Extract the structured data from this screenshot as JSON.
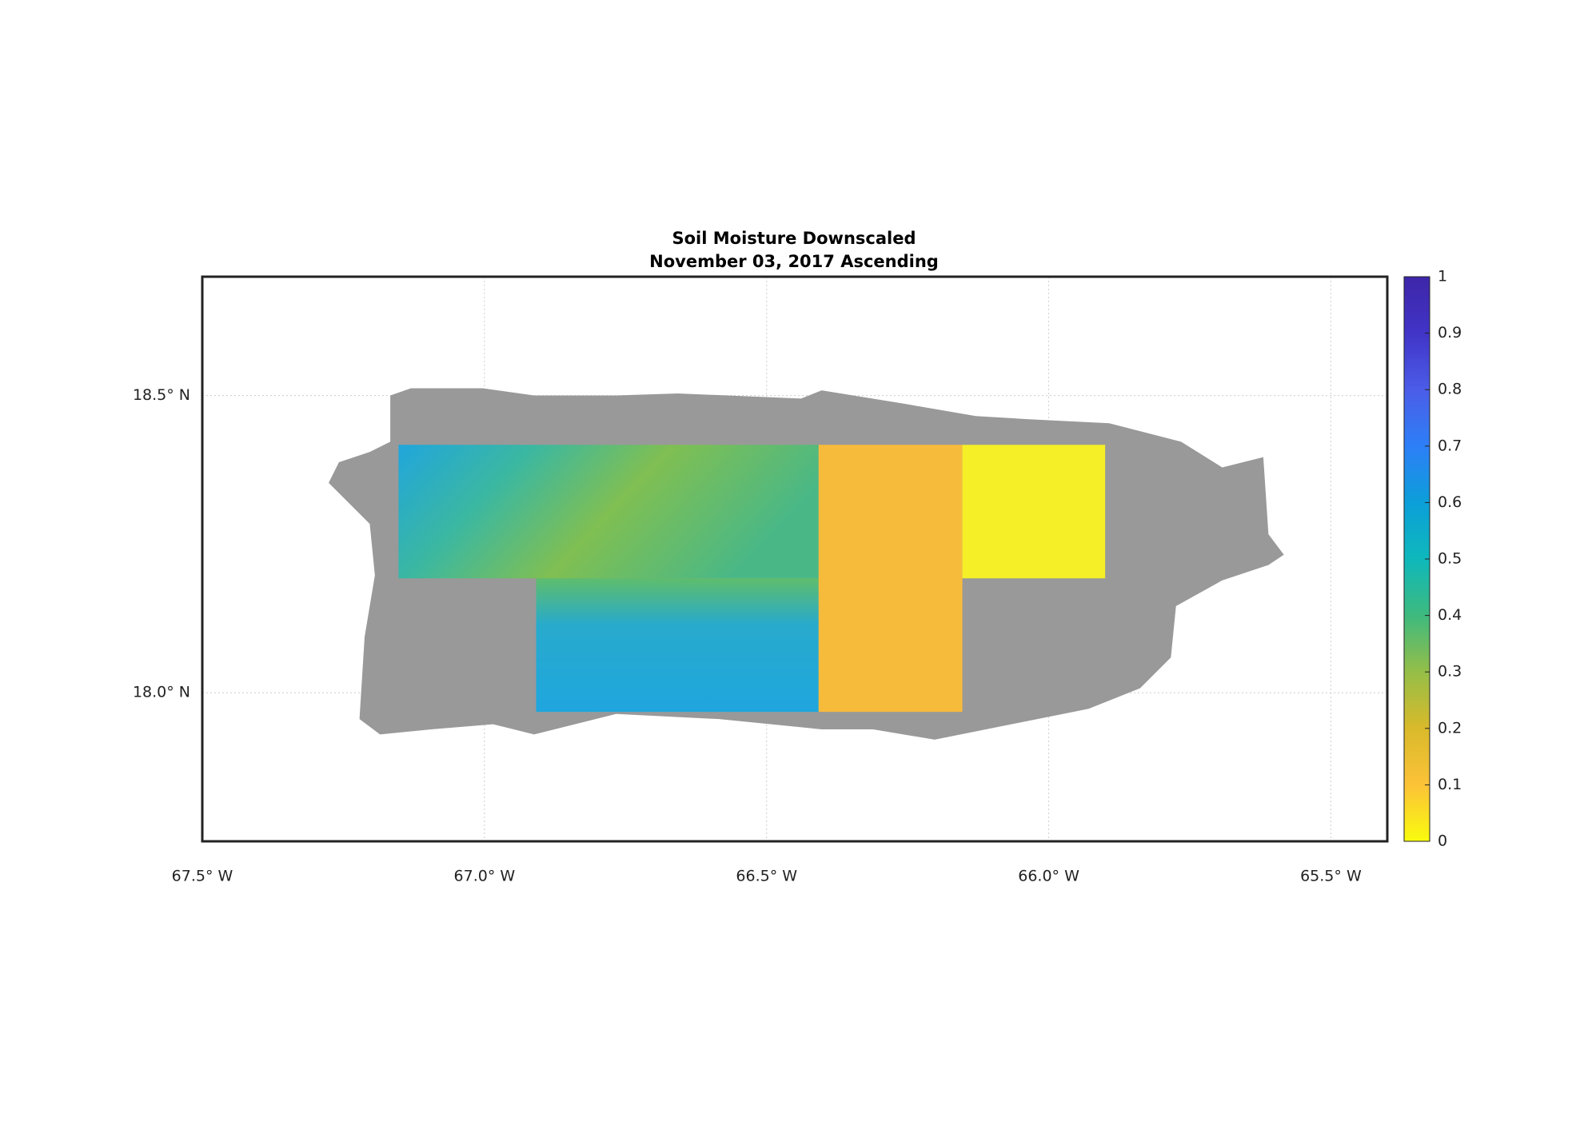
{
  "chart_data": {
    "type": "map",
    "title": "Soil Moisture Downscaled",
    "subtitle": "November 03, 2017 Ascending",
    "xlim": [
      -67.5,
      -65.4
    ],
    "ylim": [
      17.75,
      18.7
    ],
    "xticks": [
      {
        "value": -67.5,
        "label": "67.5° W"
      },
      {
        "value": -67.0,
        "label": "67.0° W"
      },
      {
        "value": -66.5,
        "label": "66.5° W"
      },
      {
        "value": -66.0,
        "label": "66.0° W"
      },
      {
        "value": -65.5,
        "label": "65.5° W"
      }
    ],
    "yticks": [
      {
        "value": 18.0,
        "label": "18.0° N"
      },
      {
        "value": 18.5,
        "label": "18.5° N"
      }
    ],
    "grid": true,
    "colorbar": {
      "clim": [
        0,
        1
      ],
      "ticks": [
        0,
        0.1,
        0.2,
        0.3,
        0.4,
        0.5,
        0.6,
        0.7,
        0.8,
        0.9,
        1
      ],
      "colors": [
        "#f9fb0e",
        "#fcc238",
        "#d9ba2a",
        "#95be48",
        "#3eba7e",
        "#0eb8bb",
        "#0c9fd9",
        "#2d7ff7",
        "#4b5de8",
        "#4134c7",
        "#3e26a8"
      ]
    }
  }
}
